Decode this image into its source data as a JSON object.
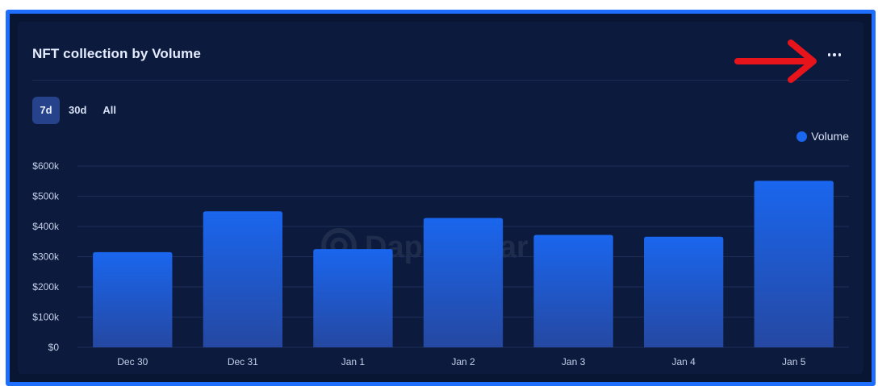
{
  "card": {
    "title": "NFT collection by Volume"
  },
  "tabs": [
    {
      "label": "7d",
      "active": true
    },
    {
      "label": "30d",
      "active": false
    },
    {
      "label": "All",
      "active": false
    }
  ],
  "icons": {
    "menu": "more-horizontal-icon",
    "annotation": "red-arrow-icon",
    "watermark": "dappradar-logo-icon"
  },
  "colors": {
    "bar_top": "#1a66ee",
    "bar_bottom": "#2548a2",
    "annotation": "#e8141c",
    "border": "#1f6fff"
  },
  "chart_data": {
    "type": "bar",
    "categories": [
      "Dec 30",
      "Dec 31",
      "Jan 1",
      "Jan 2",
      "Jan 3",
      "Jan 4",
      "Jan 5"
    ],
    "series": [
      {
        "name": "Volume",
        "values": [
          315000,
          450000,
          325000,
          428000,
          372000,
          366000,
          551000
        ]
      }
    ],
    "y_ticks": [
      "$0",
      "$100k",
      "$200k",
      "$300k",
      "$400k",
      "$500k",
      "$600k"
    ],
    "ylim": [
      0,
      600000
    ],
    "legend": "top-right",
    "grid": true,
    "watermark": "DappRadar"
  }
}
